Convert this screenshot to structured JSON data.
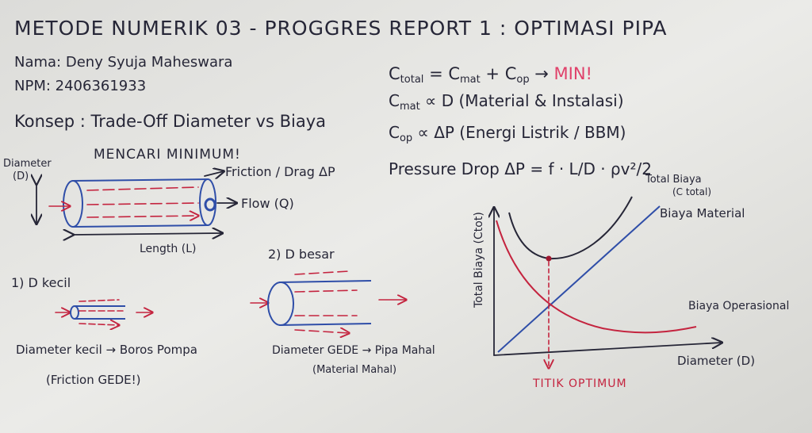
{
  "header": {
    "title": "METODE NUMERIK 03 - PROGGRES REPORT 1 : OPTIMASI PIPA"
  },
  "info": {
    "name": "Nama: Deny Syuja Maheswara",
    "npm": "NPM: 2406361933",
    "concept": "Konsep : Trade-Off Diameter vs Biaya"
  },
  "formulas": [
    {
      "segments": [
        "C",
        "total",
        " = C",
        "mat",
        " + C",
        "op",
        " → "
      ],
      "result": "MIN!"
    },
    {
      "segments": [
        "C",
        "mat",
        " ∝ D (Material & Instalasi)"
      ]
    },
    {
      "segments": [
        "C",
        "op",
        " ∝ ΔP (Energi Listrik / BBM)"
      ]
    },
    {
      "segments": [
        "Pressure Drop  ΔP = f · L/D · ρv²/2"
      ]
    }
  ],
  "pipe": {
    "heading": "MENCARI MINIMUM!",
    "diameter": "Diameter",
    "diameter_symbol": "(D)",
    "friction": "Friction / Drag ΔP",
    "flow": "Flow (Q)",
    "length": "Length (L)"
  },
  "small_pipe": {
    "label": "1) D kecil",
    "effect": "Diameter kecil → Boros Pompa",
    "note": "(Friction GEDE!)"
  },
  "large_pipe": {
    "label": "2) D besar",
    "effect": "Diameter GEDE → Pipa Mahal",
    "note": "(Material Mahal)"
  },
  "graph": {
    "y_label": "Total Biaya (Ctot)",
    "x_label": "Diameter (D)",
    "total_curve": "Total Biaya",
    "total_curve_note": "(C total)",
    "material_curve": "Biaya Material",
    "operational_curve": "Biaya Operasional",
    "optimum": "TITIK OPTIMUM"
  }
}
